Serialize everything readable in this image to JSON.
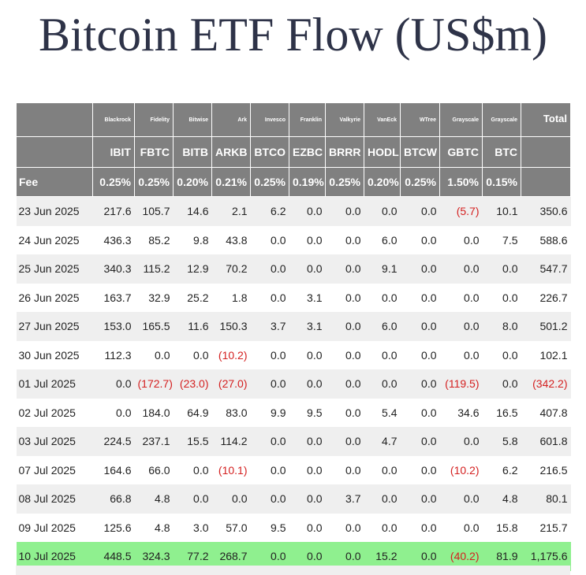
{
  "title": "Bitcoin ETF Flow (US$m)",
  "colors": {
    "header_bg": "#808080",
    "negative": "#d42020",
    "highlight_row": "#8ff08f",
    "zebra": "#efefef"
  },
  "columns": [
    {
      "issuer": "Blackrock",
      "ticker": "IBIT",
      "fee": "0.25%"
    },
    {
      "issuer": "Fidelity",
      "ticker": "FBTC",
      "fee": "0.25%"
    },
    {
      "issuer": "Bitwise",
      "ticker": "BITB",
      "fee": "0.20%"
    },
    {
      "issuer": "Ark",
      "ticker": "ARKB",
      "fee": "0.21%"
    },
    {
      "issuer": "Invesco",
      "ticker": "BTCO",
      "fee": "0.25%"
    },
    {
      "issuer": "Franklin",
      "ticker": "EZBC",
      "fee": "0.19%"
    },
    {
      "issuer": "Valkyrie",
      "ticker": "BRRR",
      "fee": "0.25%"
    },
    {
      "issuer": "VanEck",
      "ticker": "HODL",
      "fee": "0.20%"
    },
    {
      "issuer": "WTree",
      "ticker": "BTCW",
      "fee": "0.25%"
    },
    {
      "issuer": "Grayscale",
      "ticker": "GBTC",
      "fee": "1.50%"
    },
    {
      "issuer": "Grayscale",
      "ticker": "BTC",
      "fee": "0.15%"
    }
  ],
  "total_label": "Total",
  "fee_label": "Fee",
  "chart_data": {
    "type": "table",
    "title": "Bitcoin ETF Flow (US$m)",
    "columns": [
      "IBIT",
      "FBTC",
      "BITB",
      "ARKB",
      "BTCO",
      "EZBC",
      "BRRR",
      "HODL",
      "BTCW",
      "GBTC",
      "BTC",
      "Total"
    ],
    "rows": [
      {
        "date": "23 Jun 2025",
        "values": [
          "217.6",
          "105.7",
          "14.6",
          "2.1",
          "6.2",
          "0.0",
          "0.0",
          "0.0",
          "0.0",
          "(5.7)",
          "10.1",
          "350.6"
        ]
      },
      {
        "date": "24 Jun 2025",
        "values": [
          "436.3",
          "85.2",
          "9.8",
          "43.8",
          "0.0",
          "0.0",
          "0.0",
          "6.0",
          "0.0",
          "0.0",
          "7.5",
          "588.6"
        ]
      },
      {
        "date": "25 Jun 2025",
        "values": [
          "340.3",
          "115.2",
          "12.9",
          "70.2",
          "0.0",
          "0.0",
          "0.0",
          "9.1",
          "0.0",
          "0.0",
          "0.0",
          "547.7"
        ]
      },
      {
        "date": "26 Jun 2025",
        "values": [
          "163.7",
          "32.9",
          "25.2",
          "1.8",
          "0.0",
          "3.1",
          "0.0",
          "0.0",
          "0.0",
          "0.0",
          "0.0",
          "226.7"
        ]
      },
      {
        "date": "27 Jun 2025",
        "values": [
          "153.0",
          "165.5",
          "11.6",
          "150.3",
          "3.7",
          "3.1",
          "0.0",
          "6.0",
          "0.0",
          "0.0",
          "8.0",
          "501.2"
        ]
      },
      {
        "date": "30 Jun 2025",
        "values": [
          "112.3",
          "0.0",
          "0.0",
          "(10.2)",
          "0.0",
          "0.0",
          "0.0",
          "0.0",
          "0.0",
          "0.0",
          "0.0",
          "102.1"
        ]
      },
      {
        "date": "01 Jul 2025",
        "values": [
          "0.0",
          "(172.7)",
          "(23.0)",
          "(27.0)",
          "0.0",
          "0.0",
          "0.0",
          "0.0",
          "0.0",
          "(119.5)",
          "0.0",
          "(342.2)"
        ]
      },
      {
        "date": "02 Jul 2025",
        "values": [
          "0.0",
          "184.0",
          "64.9",
          "83.0",
          "9.9",
          "9.5",
          "0.0",
          "5.4",
          "0.0",
          "34.6",
          "16.5",
          "407.8"
        ]
      },
      {
        "date": "03 Jul 2025",
        "values": [
          "224.5",
          "237.1",
          "15.5",
          "114.2",
          "0.0",
          "0.0",
          "0.0",
          "4.7",
          "0.0",
          "0.0",
          "5.8",
          "601.8"
        ]
      },
      {
        "date": "07 Jul 2025",
        "values": [
          "164.6",
          "66.0",
          "0.0",
          "(10.1)",
          "0.0",
          "0.0",
          "0.0",
          "0.0",
          "0.0",
          "(10.2)",
          "6.2",
          "216.5"
        ]
      },
      {
        "date": "08 Jul 2025",
        "values": [
          "66.8",
          "4.8",
          "0.0",
          "0.0",
          "0.0",
          "0.0",
          "3.7",
          "0.0",
          "0.0",
          "0.0",
          "4.8",
          "80.1"
        ]
      },
      {
        "date": "09 Jul 2025",
        "values": [
          "125.6",
          "4.8",
          "3.0",
          "57.0",
          "9.5",
          "0.0",
          "0.0",
          "0.0",
          "0.0",
          "0.0",
          "15.8",
          "215.7"
        ]
      },
      {
        "date": "10 Jul 2025",
        "values": [
          "448.5",
          "324.3",
          "77.2",
          "268.7",
          "0.0",
          "0.0",
          "0.0",
          "15.2",
          "0.0",
          "(40.2)",
          "81.9",
          "1,175.6"
        ],
        "highlight": true
      }
    ]
  }
}
